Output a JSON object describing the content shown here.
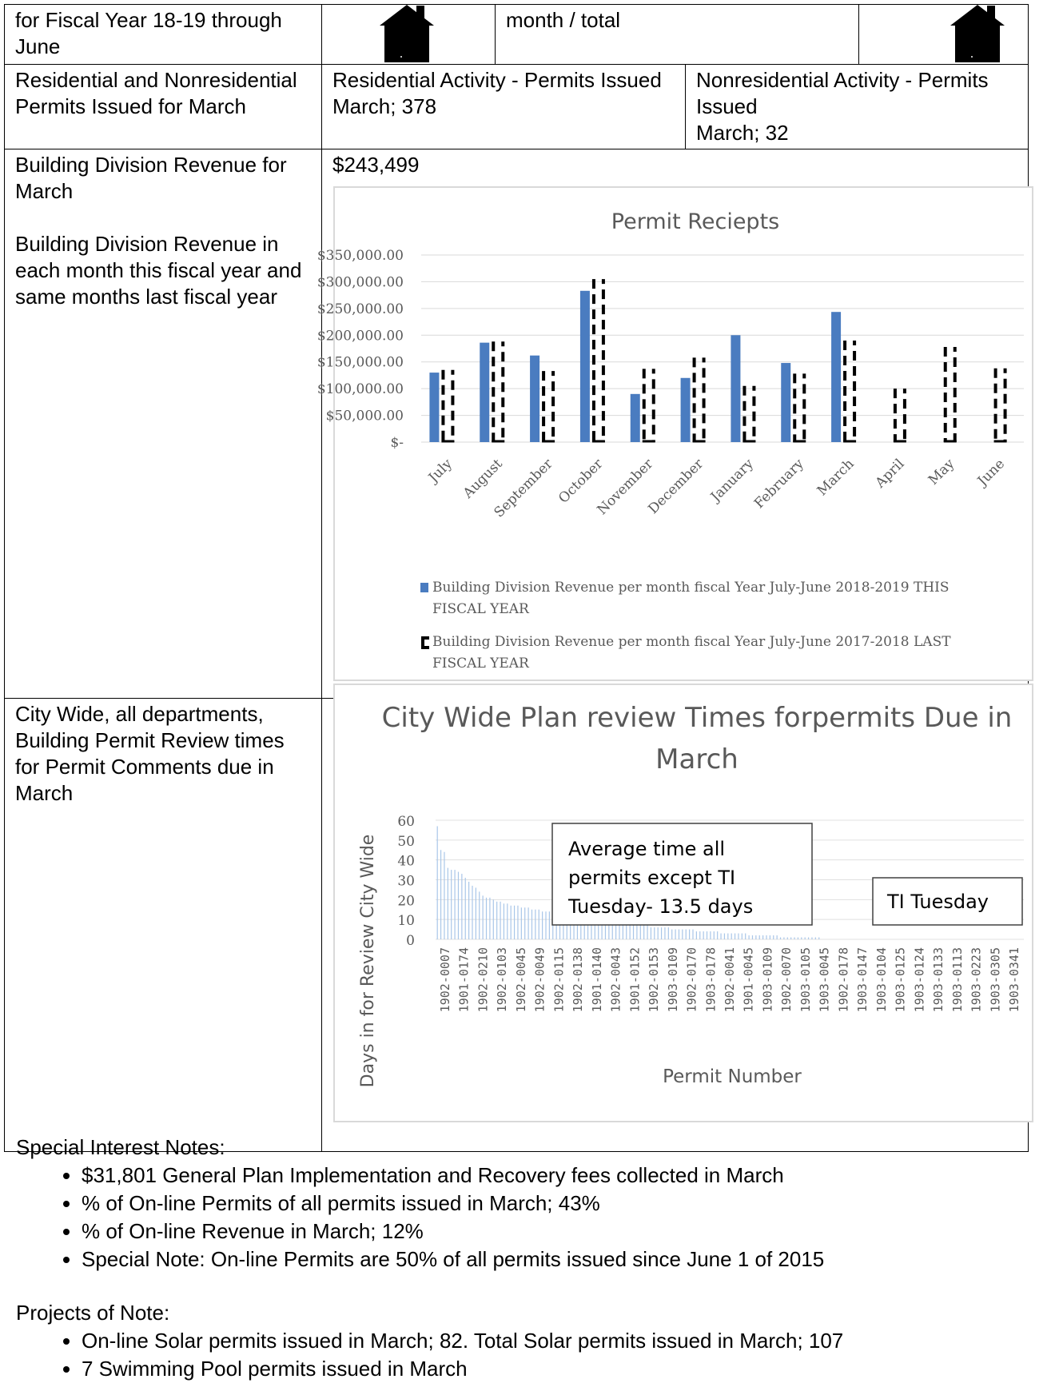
{
  "top_row": {
    "left_text": "for Fiscal Year 18-19 through June",
    "mid_text": "month / total",
    "house_left_icon": "house-icon",
    "house_right_icon": "house-icon"
  },
  "permits_row": {
    "label": "Residential and Nonresidential Permits Issued for March",
    "residential_title": "Residential Activity - Permits Issued",
    "residential_value": "March; 378",
    "nonresidential_title": "Nonresidential Activity - Permits Issued",
    "nonresidential_value": "March; 32"
  },
  "revenue_row": {
    "label_1": "Building Division Revenue for March",
    "label_2": "Building Division Revenue in each month this fiscal year and same months last fiscal year",
    "value": "$243,499"
  },
  "review_row": {
    "label": "City Wide, all departments, Building Permit Review times for Permit Comments due in March"
  },
  "chart_data": [
    {
      "type": "bar",
      "title": "Permit Reciepts",
      "categories": [
        "July",
        "August",
        "September",
        "October",
        "November",
        "December",
        "January",
        "February",
        "March",
        "April",
        "May",
        "June"
      ],
      "yticks": [
        "$350,000.00",
        "$300,000.00",
        "$250,000.00",
        "$200,000.00",
        "$150,000.00",
        "$100,000.00",
        "$50,000.00",
        "$-"
      ],
      "ylim": [
        0,
        350000
      ],
      "grid": true,
      "legend_position": "bottom",
      "series": [
        {
          "name": "Building Division Revenue  per month  fiscal Year July-June 2018-2019 THIS FISCAL YEAR",
          "values": [
            130000,
            186000,
            162000,
            283000,
            90000,
            120000,
            200000,
            148000,
            243499,
            0,
            0,
            0
          ],
          "color": "#4a7cc0"
        },
        {
          "name": "Building Division Revenue  per month  fiscal Year July-June 2017-2018 LAST FISCAL YEAR",
          "values": [
            135000,
            188000,
            133000,
            305000,
            137000,
            158000,
            105000,
            128000,
            190000,
            100000,
            178000,
            138000
          ],
          "color": "#000000"
        }
      ]
    },
    {
      "type": "bar",
      "title_line1": "City Wide Plan review Times forpermits Due in",
      "title_line2": "March",
      "xlabel": "Permit Number",
      "ylabel": "Days in for Review City Wide",
      "yticks": [
        "60",
        "50",
        "40",
        "30",
        "20",
        "10",
        "0"
      ],
      "ylim": [
        0,
        60
      ],
      "color": "#a9c6e8",
      "xticks": [
        "1902-0007",
        "1901-0174",
        "1902-0210",
        "1902-0103",
        "1902-0045",
        "1902-0049",
        "1902-0115",
        "1902-0138",
        "1901-0140",
        "1902-0043",
        "1901-0152",
        "1902-0153",
        "1903-0109",
        "1902-0170",
        "1903-0178",
        "1902-0041",
        "1901-0045",
        "1903-0109",
        "1902-0070",
        "1903-0105",
        "1903-0045",
        "1902-0178",
        "1903-0147",
        "1903-0104",
        "1903-0125",
        "1903-0124",
        "1903-0133",
        "1903-0113",
        "1903-0223",
        "1903-0305",
        "1903-0341"
      ],
      "values": [
        57,
        45,
        44,
        36,
        35,
        35,
        34,
        33,
        31,
        29,
        27,
        26,
        24,
        22,
        21,
        21,
        20,
        19,
        19,
        18,
        18,
        17,
        17,
        17,
        16,
        16,
        16,
        15,
        15,
        15,
        14,
        14,
        14,
        13,
        13,
        13,
        12,
        12,
        12,
        12,
        11,
        11,
        11,
        11,
        10,
        10,
        10,
        10,
        9,
        9,
        9,
        9,
        8,
        8,
        8,
        8,
        7,
        7,
        7,
        7,
        7,
        6,
        6,
        6,
        6,
        6,
        6,
        5,
        5,
        5,
        5,
        5,
        5,
        5,
        4,
        4,
        4,
        4,
        4,
        4,
        4,
        3,
        3,
        3,
        3,
        3,
        3,
        3,
        3,
        2,
        2,
        2,
        2,
        2,
        2,
        2,
        2,
        2,
        1,
        1,
        1,
        1,
        1,
        1,
        1,
        1,
        1,
        1,
        1,
        1,
        0,
        0,
        0,
        0,
        0,
        0,
        0,
        0,
        0,
        0,
        0,
        0,
        0,
        0,
        0,
        0,
        0,
        0,
        0,
        0,
        0,
        0,
        0,
        0,
        0,
        0,
        0,
        0,
        0,
        0,
        0,
        0,
        0,
        0,
        0,
        0,
        0,
        0,
        0,
        0,
        0,
        0,
        0,
        0,
        0,
        0,
        0,
        0,
        0,
        0,
        0,
        0,
        0,
        0,
        0,
        0,
        0,
        0
      ],
      "annotation_1": "Average time all permits except TI Tuesday- 13.5 days",
      "annotation_1_lines": [
        "Average time all",
        "permits except TI",
        "Tuesday- 13.5 days"
      ],
      "annotation_2": "TI Tuesday"
    }
  ],
  "notes": {
    "special_heading": "Special Interest Notes:",
    "special_items": [
      "$31,801 General Plan Implementation and Recovery fees collected in March",
      "% of On-line Permits of all permits issued in March; 43%",
      "% of On-line Revenue in March; 12%",
      "Special Note:  On-line Permits are 50% of all permits issued since June 1 of 2015"
    ],
    "projects_heading": "Projects of Note:",
    "projects_items": [
      "On-line Solar permits issued in March; 82. Total Solar permits issued in March; 107",
      "7 Swimming Pool permits issued in March"
    ]
  }
}
